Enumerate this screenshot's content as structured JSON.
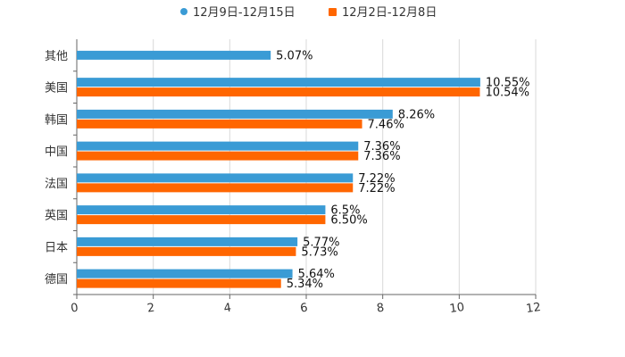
{
  "chart_data": {
    "type": "bar",
    "orientation": "horizontal",
    "title": "",
    "xlabel": "",
    "ylabel": "",
    "xlim": [
      0,
      12
    ],
    "xticks": [
      0,
      2,
      4,
      6,
      8,
      10,
      12
    ],
    "grid": true,
    "legend_position": "top-center",
    "categories": [
      "其他",
      "美国",
      "韩国",
      "中国",
      "法国",
      "英国",
      "日本",
      "德国"
    ],
    "series": [
      {
        "name": "12月9日-12月15日",
        "color": "#3a9bd5",
        "values": [
          5.07,
          10.55,
          8.26,
          7.36,
          7.22,
          6.5,
          5.77,
          5.64
        ],
        "labels": [
          "5.07%",
          "10.55%",
          "8.26%",
          "7.36%",
          "7.22%",
          "6.5%",
          "5.77%",
          "5.64%"
        ]
      },
      {
        "name": "12月2日-12月8日",
        "color": "#ff6600",
        "values": [
          null,
          10.54,
          7.46,
          7.36,
          7.22,
          6.5,
          5.73,
          5.34
        ],
        "labels": [
          "",
          "10.54%",
          "7.46%",
          "7.36%",
          "7.22%",
          "6.50%",
          "5.73%",
          "5.34%"
        ]
      }
    ]
  }
}
